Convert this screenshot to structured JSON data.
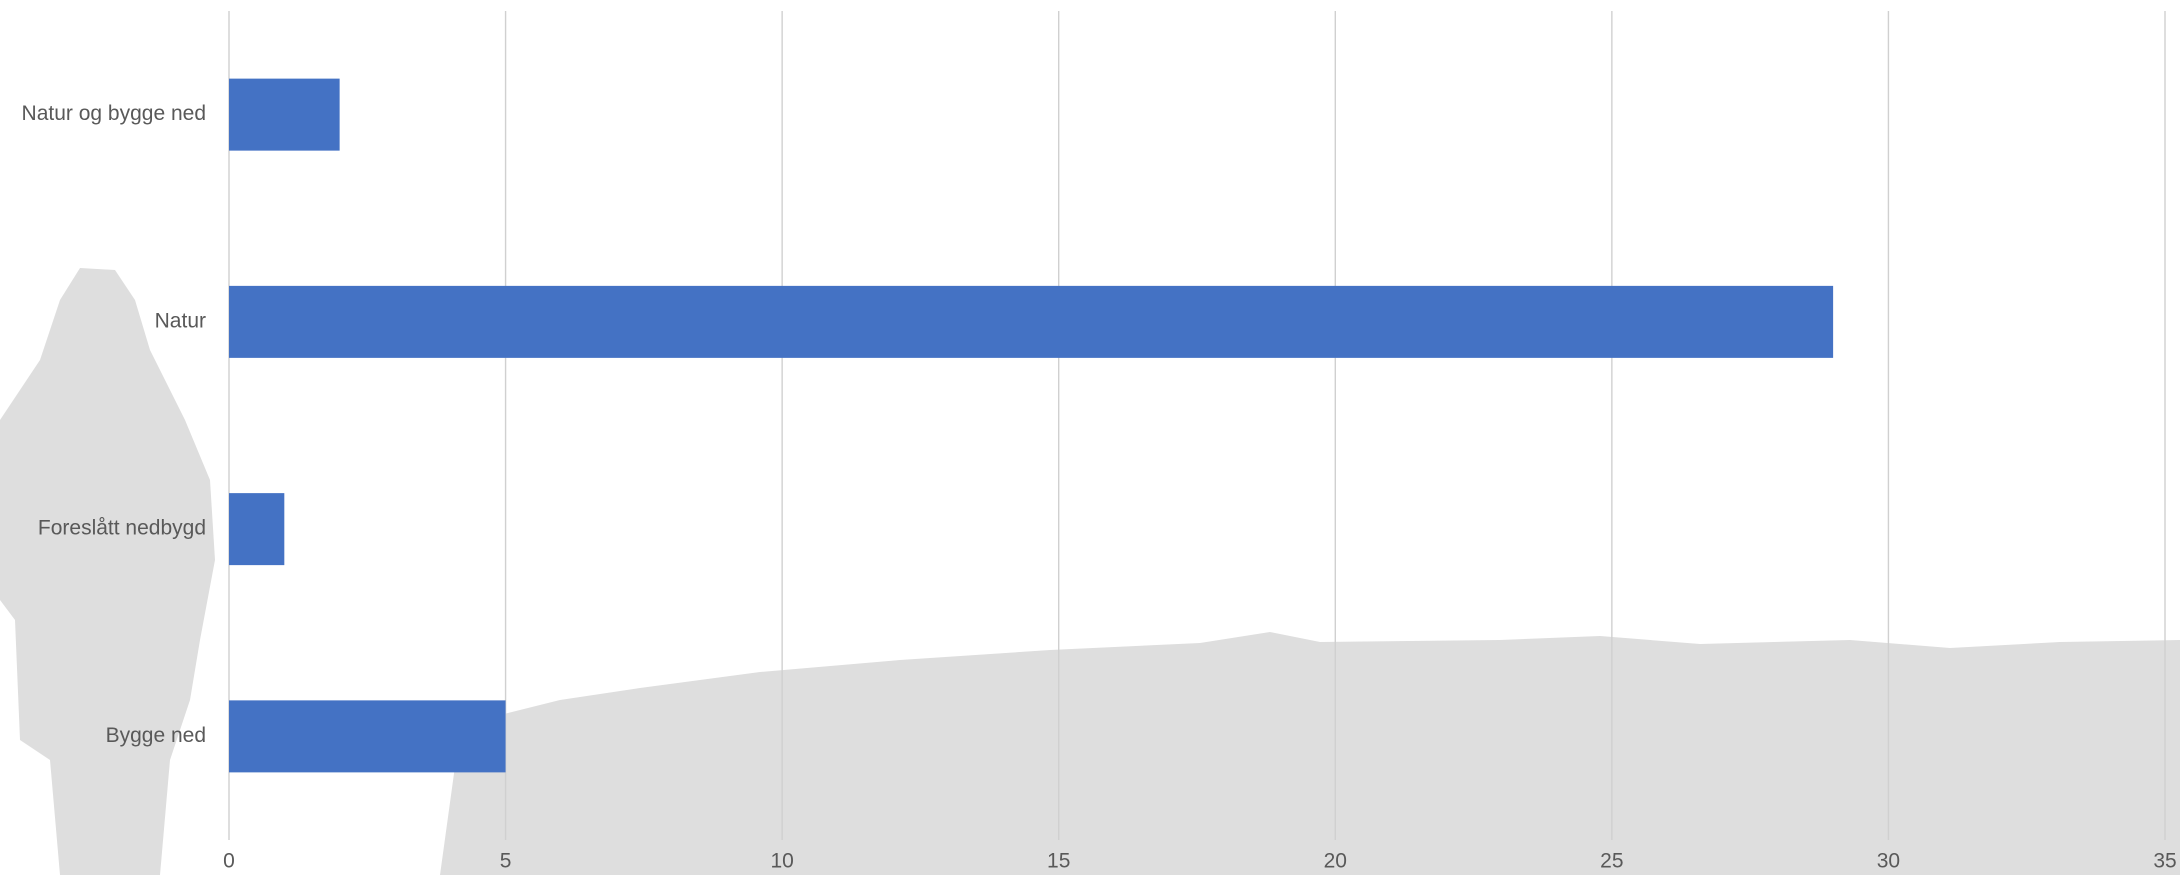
{
  "chart_data": {
    "type": "bar",
    "orientation": "horizontal",
    "categories": [
      "Natur og bygge ned",
      "Natur",
      "Foreslått nedbygd",
      "Bygge ned"
    ],
    "values": [
      2,
      29,
      1,
      5
    ],
    "color": "#4472c4",
    "xlim": [
      0,
      35
    ],
    "xticks": [
      0,
      5,
      10,
      15,
      20,
      25,
      30,
      35
    ],
    "grid": true
  }
}
